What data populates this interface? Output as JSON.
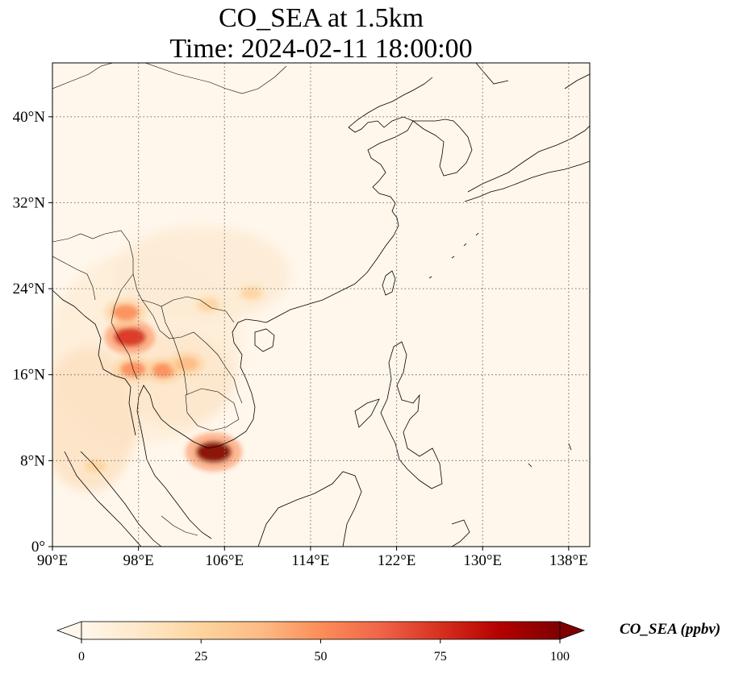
{
  "title": {
    "line1": "CO_SEA at 1.5km",
    "line2": "Time: 2024-02-11 18:00:00"
  },
  "map": {
    "projection": "PlateCarree",
    "lon_range": [
      90,
      140
    ],
    "lat_range": [
      0,
      45
    ],
    "gridlines": "dotted",
    "lon_ticks": [
      90,
      98,
      106,
      114,
      122,
      130,
      138
    ],
    "lon_tick_labels": [
      "90°E",
      "98°E",
      "106°E",
      "114°E",
      "122°E",
      "130°E",
      "138°E"
    ],
    "lat_ticks": [
      0,
      8,
      16,
      24,
      32,
      40
    ],
    "lat_tick_labels": [
      "0°",
      "8°N",
      "16°N",
      "24°N",
      "32°N",
      "40°N"
    ],
    "field": "CO_SEA",
    "high_concentration_areas": [
      {
        "lon": 105.0,
        "lat": 8.8,
        "level": 100
      },
      {
        "lon": 97.2,
        "lat": 19.5,
        "level": 80
      },
      {
        "lon": 96.8,
        "lat": 21.8,
        "level": 55
      },
      {
        "lon": 100.3,
        "lat": 16.4,
        "level": 45
      },
      {
        "lon": 97.5,
        "lat": 16.5,
        "level": 50
      },
      {
        "lon": 102.5,
        "lat": 17.0,
        "level": 35
      },
      {
        "lon": 104.5,
        "lat": 22.5,
        "level": 30
      },
      {
        "lon": 108.5,
        "lat": 23.6,
        "level": 25
      },
      {
        "lon": 94.0,
        "lat": 7.5,
        "level": 30
      }
    ]
  },
  "colorbar": {
    "colormap": "OrRd",
    "vmin": 0,
    "vmax": 100,
    "extend": "both",
    "ticks": [
      0,
      25,
      50,
      75,
      100
    ],
    "tick_labels": [
      "0",
      "25",
      "50",
      "75",
      "100"
    ],
    "label": "CO_SEA (ppbv)",
    "colors": [
      "#fff7ec",
      "#fee8c8",
      "#fdd49e",
      "#fdbb84",
      "#fc8d59",
      "#ef6548",
      "#d7301f",
      "#b30000",
      "#7f0000"
    ]
  }
}
